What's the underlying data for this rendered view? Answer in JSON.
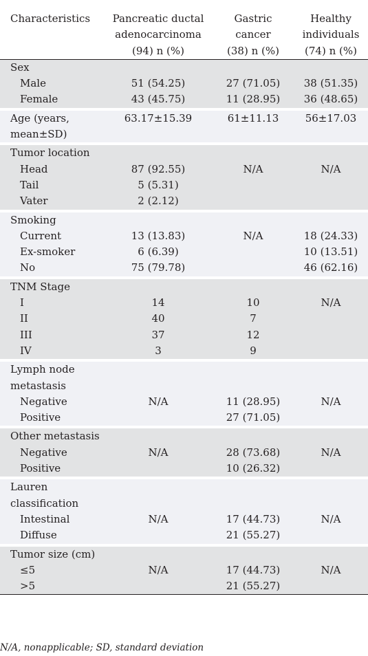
{
  "headers": {
    "characteristics": "Characteristics",
    "pdac": [
      "Pancreatic ductal",
      "adenocarcinoma",
      "(94) n (%)"
    ],
    "gastric": [
      "Gastric",
      "cancer",
      "(38) n (%)"
    ],
    "healthy": [
      "Healthy",
      "individuals",
      "(74) n (%)"
    ]
  },
  "groups": [
    {
      "title": [
        "Sex"
      ],
      "rows": [
        {
          "label": "Male",
          "pdac": "51 (54.25)",
          "gastric": "27 (71.05)",
          "healthy": "38 (51.35)"
        },
        {
          "label": "Female",
          "pdac": "43 (45.75)",
          "gastric": "11 (28.95)",
          "healthy": "36 (48.65)"
        }
      ]
    },
    {
      "title": [
        "Age (years,",
        "mean±SD)"
      ],
      "values": {
        "pdac": "63.17±15.39",
        "gastric": "61±11.13",
        "healthy": "56±17.03"
      }
    },
    {
      "title": [
        "Tumor location"
      ],
      "rows": [
        {
          "label": "Head",
          "pdac": "87 (92.55)",
          "gastric": "N/A",
          "healthy": "N/A"
        },
        {
          "label": "Tail",
          "pdac": "5 (5.31)",
          "gastric": "",
          "healthy": ""
        },
        {
          "label": "Vater",
          "pdac": "2 (2.12)",
          "gastric": "",
          "healthy": ""
        }
      ]
    },
    {
      "title": [
        "Smoking"
      ],
      "rows": [
        {
          "label": "Current",
          "pdac": "13 (13.83)",
          "gastric": "N/A",
          "healthy": "18 (24.33)"
        },
        {
          "label": "Ex-smoker",
          "pdac": "6 (6.39)",
          "gastric": "",
          "healthy": "10 (13.51)"
        },
        {
          "label": "No",
          "pdac": "75 (79.78)",
          "gastric": "",
          "healthy": "46 (62.16)"
        }
      ]
    },
    {
      "title": [
        "TNM Stage"
      ],
      "rows": [
        {
          "label": "I",
          "pdac": "14",
          "gastric": "10",
          "healthy": "N/A"
        },
        {
          "label": "II",
          "pdac": "40",
          "gastric": "7",
          "healthy": ""
        },
        {
          "label": "III",
          "pdac": "37",
          "gastric": "12",
          "healthy": ""
        },
        {
          "label": "IV",
          "pdac": "3",
          "gastric": "9",
          "healthy": ""
        }
      ]
    },
    {
      "title": [
        "Lymph node",
        "metastasis"
      ],
      "rows": [
        {
          "label": "Negative",
          "pdac": "N/A",
          "gastric": "11 (28.95)",
          "healthy": "N/A"
        },
        {
          "label": "Positive",
          "pdac": "",
          "gastric": "27 (71.05)",
          "healthy": ""
        }
      ]
    },
    {
      "title": [
        "Other metastasis"
      ],
      "rows": [
        {
          "label": "Negative",
          "pdac": "N/A",
          "gastric": "28 (73.68)",
          "healthy": "N/A"
        },
        {
          "label": "Positive",
          "pdac": "",
          "gastric": "10 (26.32)",
          "healthy": ""
        }
      ]
    },
    {
      "title": [
        "Lauren",
        "classification"
      ],
      "rows": [
        {
          "label": "Intestinal",
          "pdac": "N/A",
          "gastric": "17 (44.73)",
          "healthy": "N/A"
        },
        {
          "label": "Diffuse",
          "pdac": "",
          "gastric": "21 (55.27)",
          "healthy": ""
        }
      ]
    },
    {
      "title": [
        "Tumor size (cm)"
      ],
      "rows": [
        {
          "label": "≤5",
          "pdac": "N/A",
          "gastric": "17 (44.73)",
          "healthy": "N/A"
        },
        {
          "label": ">5",
          "pdac": "",
          "gastric": "21 (55.27)",
          "healthy": ""
        }
      ]
    }
  ],
  "footnote": "N/A, nonapplicable; SD, standard deviation",
  "colors": {
    "shade": "#e2e3e4",
    "light": "#f0f1f5",
    "text": "#231f20"
  }
}
